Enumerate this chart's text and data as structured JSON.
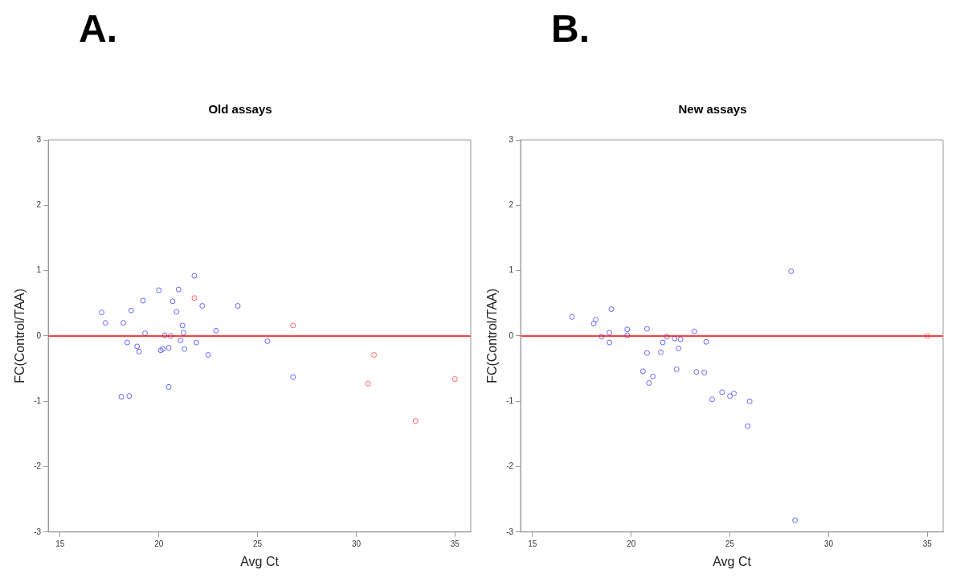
{
  "chart_data": [
    {
      "type": "scatter",
      "title": "Old assays",
      "xlabel": "Avg Ct",
      "ylabel": "FC(Control/TAA)",
      "annotations": [
        "A."
      ],
      "xlim": [
        14.4,
        35.8
      ],
      "xticks": [
        15,
        20,
        25,
        30,
        35
      ],
      "ylim": [
        -3,
        3
      ],
      "yticks": [
        -3,
        -2,
        -1,
        0,
        1,
        2,
        3
      ],
      "grid": false,
      "marker": "circle",
      "ref_lines": [
        {
          "axis": "y",
          "value": 0,
          "color": "#ff0000"
        }
      ],
      "series": [
        {
          "color": "#6666ff",
          "x": [
            17.1,
            17.3,
            18.2,
            18.6,
            18.4,
            19.2,
            18.9,
            19.0,
            19.3,
            20.0,
            20.1,
            20.2,
            20.3,
            20.5,
            20.6,
            20.7,
            20.9,
            21.0,
            21.1,
            21.2,
            21.25,
            21.3,
            21.8,
            21.9,
            22.2,
            22.5,
            22.9,
            24.0,
            25.5,
            26.8,
            18.1,
            18.5,
            20.5
          ],
          "values": [
            0.36,
            0.2,
            0.2,
            0.39,
            -0.1,
            0.54,
            -0.16,
            -0.24,
            0.04,
            0.7,
            -0.22,
            -0.2,
            0.01,
            -0.18,
            0.0,
            0.53,
            0.37,
            0.71,
            -0.07,
            0.16,
            0.05,
            -0.2,
            0.92,
            -0.1,
            0.46,
            -0.29,
            0.08,
            0.46,
            -0.08,
            -0.63,
            -0.93,
            -0.92,
            -0.78
          ]
        },
        {
          "color": "#ff6666",
          "x": [
            21.8,
            26.8,
            30.9,
            30.6,
            33.0,
            35.0
          ],
          "values": [
            0.58,
            0.16,
            -0.29,
            -0.73,
            -1.3,
            -0.66
          ]
        }
      ]
    },
    {
      "type": "scatter",
      "title": "New assays",
      "xlabel": "Avg Ct",
      "ylabel": "FC(Control/TAA)",
      "annotations": [
        "B."
      ],
      "xlim": [
        14.4,
        35.8
      ],
      "xticks": [
        15,
        20,
        25,
        30,
        35
      ],
      "ylim": [
        -3,
        3
      ],
      "yticks": [
        -3,
        -2,
        -1,
        0,
        1,
        2,
        3
      ],
      "grid": false,
      "marker": "circle",
      "ref_lines": [
        {
          "axis": "y",
          "value": 0,
          "color": "#ff0000"
        }
      ],
      "series": [
        {
          "color": "#6666ff",
          "x": [
            17.0,
            18.1,
            18.2,
            18.5,
            18.9,
            18.9,
            19.0,
            19.8,
            19.8,
            20.6,
            20.8,
            20.8,
            20.9,
            21.1,
            21.5,
            21.6,
            21.8,
            22.2,
            22.3,
            22.4,
            22.5,
            23.2,
            23.3,
            23.7,
            23.8,
            24.1,
            24.6,
            25.0,
            25.2,
            25.9,
            26.0,
            28.1,
            28.3
          ],
          "values": [
            0.29,
            0.19,
            0.25,
            -0.01,
            0.05,
            -0.1,
            0.41,
            0.1,
            0.01,
            -0.54,
            0.11,
            -0.26,
            -0.72,
            -0.62,
            -0.25,
            -0.1,
            -0.01,
            -0.04,
            -0.51,
            -0.19,
            -0.05,
            0.07,
            -0.55,
            -0.56,
            -0.09,
            -0.97,
            -0.86,
            -0.92,
            -0.88,
            -1.38,
            -1.0,
            0.99,
            -2.82
          ]
        },
        {
          "color": "#ff6666",
          "x": [
            35.0
          ],
          "values": [
            0.0
          ]
        }
      ]
    }
  ]
}
